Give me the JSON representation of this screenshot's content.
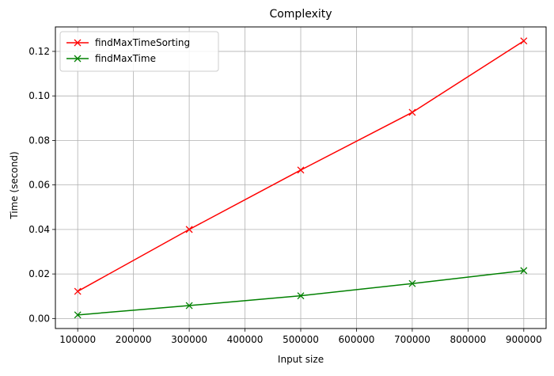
{
  "chart_data": {
    "type": "line",
    "title": "Complexity",
    "xlabel": "Input size",
    "ylabel": "Time (second)",
    "x": [
      100000,
      300000,
      500000,
      700000,
      900000
    ],
    "xlim": [
      60000,
      940000
    ],
    "ylim": [
      -0.0045,
      0.131
    ],
    "xticks": [
      100000,
      200000,
      300000,
      400000,
      500000,
      600000,
      700000,
      800000,
      900000
    ],
    "xtick_labels": [
      "100000",
      "200000",
      "300000",
      "400000",
      "500000",
      "600000",
      "700000",
      "800000",
      "900000"
    ],
    "yticks": [
      0.0,
      0.02,
      0.04,
      0.06,
      0.08,
      0.1,
      0.12
    ],
    "ytick_labels": [
      "0.00",
      "0.02",
      "0.04",
      "0.06",
      "0.08",
      "0.10",
      "0.12"
    ],
    "grid": true,
    "legend_position": "top-left",
    "series": [
      {
        "name": "findMaxTimeSorting",
        "color": "#ff0000",
        "marker": "x",
        "values": [
          0.0122,
          0.04,
          0.0667,
          0.0926,
          0.1247
        ]
      },
      {
        "name": "findMaxTime",
        "color": "#008000",
        "marker": "x",
        "values": [
          0.0016,
          0.0058,
          0.0102,
          0.0157,
          0.0215
        ]
      }
    ]
  }
}
